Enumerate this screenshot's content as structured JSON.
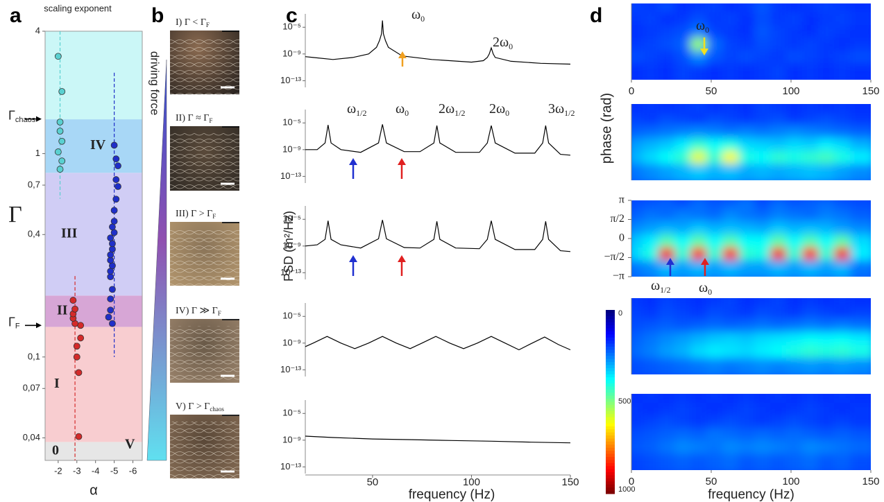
{
  "chart_data": [
    {
      "type": "scatter",
      "panel_label": "a",
      "title": "scaling exponent",
      "xlabel": "α",
      "ylabel": "Γ",
      "xlim": [
        -1.3,
        -6.5
      ],
      "xticks": [
        -2,
        -3,
        -4,
        -5,
        -6
      ],
      "ylim": [
        0.031,
        4
      ],
      "log_y": true,
      "yticks": [
        {
          "value": 0.04,
          "label": "0,04"
        },
        {
          "value": 0.07,
          "label": "0,07"
        },
        {
          "value": 0.1,
          "label": "0,1"
        },
        {
          "value": 0.4,
          "label": "0,4"
        },
        {
          "value": 0.7,
          "label": "0,7"
        },
        1,
        4
      ],
      "regions": [
        {
          "name": "0",
          "from": 0.031,
          "to": 0.0382,
          "color": "#e6e6e6"
        },
        {
          "name": "I",
          "from": 0.0382,
          "to": 0.1406,
          "color": "#f8cdd0"
        },
        {
          "name": "II",
          "from": 0.1406,
          "to": 0.2004,
          "color": "#d7a6d6"
        },
        {
          "name": "III",
          "from": 0.2004,
          "to": 0.805,
          "color": "#d0cdf5"
        },
        {
          "name": "IV",
          "from": 0.805,
          "to": 1.475,
          "color": "#a8d7f6"
        },
        {
          "name": "V",
          "from": 1.475,
          "to": 4,
          "color": "#cbf7f7"
        }
      ],
      "markers": [
        {
          "text": "Γ",
          "sub": "F",
          "value": 0.143
        },
        {
          "text": "Γ",
          "sub": "chaos",
          "value": 1.48
        }
      ],
      "series": [
        {
          "color": "#d42a2a",
          "fit": -2.9,
          "fit_range": [
            0.031,
            0.25
          ],
          "x": [
            -3.1,
            -3.1,
            -3.0,
            -3.0,
            -3.2,
            -3.2,
            -2.9,
            -2.8,
            -2.8,
            -2.9,
            -2.8
          ],
          "y": [
            0.0406,
            0.0838,
            0.1,
            0.113,
            0.124,
            0.143,
            0.146,
            0.155,
            0.163,
            0.172,
            0.19
          ]
        },
        {
          "color": "#1f2fc8",
          "fit": -5.0,
          "fit_range": [
            0.1,
            2.5
          ],
          "x": [
            -4.9,
            -4.7,
            -4.8,
            -4.8,
            -4.9,
            -4.8,
            -4.8,
            -4.9,
            -4.8,
            -4.8,
            -4.9,
            -4.9,
            -4.8,
            -5.0,
            -4.9,
            -5.0,
            -5.0,
            -5.1,
            -5.2,
            -5.1,
            -5.2,
            -5.1,
            -5.0
          ],
          "y": [
            0.146,
            0.157,
            0.17,
            0.193,
            0.215,
            0.248,
            0.264,
            0.281,
            0.299,
            0.318,
            0.339,
            0.361,
            0.385,
            0.409,
            0.436,
            0.465,
            0.526,
            0.597,
            0.689,
            0.745,
            0.871,
            0.942,
            1.1
          ]
        },
        {
          "color": "#5ad0d0",
          "fit": -2.1,
          "fit_range": [
            0.6,
            4
          ],
          "x": [
            -2.1,
            -2.2,
            -2.0,
            -2.2,
            -2.1,
            -2.1,
            -2.2,
            -2.0
          ],
          "y": [
            0.838,
            0.92,
            1.02,
            1.15,
            1.29,
            1.43,
            2.02,
            3.01
          ]
        }
      ]
    },
    {
      "type": "images",
      "panel_label": "b",
      "axis_label": "driving force",
      "images": [
        {
          "text": "I) Γ < Γ",
          "sub": "F"
        },
        {
          "text": "II) Γ ≈ Γ",
          "sub": "F"
        },
        {
          "text": "III) Γ > Γ",
          "sub": "F"
        },
        {
          "text": "IV) Γ ≫ Γ",
          "sub": "F"
        },
        {
          "text": "V) Γ > Γ",
          "sub": "chaos"
        }
      ]
    },
    {
      "type": "line",
      "panel_label": "c",
      "color": "#000000",
      "xlim": [
        16,
        150
      ],
      "ylim": [
        1e-14,
        0.001
      ],
      "log_y": true,
      "yticks": [
        {
          "value": 1e-05,
          "label": "10⁻⁵"
        },
        {
          "value": 1e-09,
          "label": "10⁻⁹"
        },
        {
          "value": 1e-13,
          "label": "10⁻¹³"
        }
      ],
      "x": [
        16,
        20,
        30,
        40,
        48,
        52,
        53.5,
        54.5,
        55,
        55.5,
        56.5,
        58,
        65,
        80,
        100,
        106,
        108,
        109,
        110,
        111,
        112,
        120,
        135,
        150
      ],
      "values": [
        4e-10,
        3e-10,
        1.5e-10,
        3e-10,
        1e-09,
        1e-08,
        1e-07,
        1e-06,
        0.0001,
        1e-06,
        1e-07,
        1e-08,
        5e-10,
        1.5e-10,
        6e-11,
        1e-10,
        3e-10,
        1e-09,
        8e-09,
        1e-09,
        3e-10,
        8e-11,
        4e-11,
        3e-11
      ],
      "annotations": [
        {
          "text": "ω",
          "sub": "0",
          "color": "#e02020"
        },
        {
          "text": "2ω",
          "sub": "0",
          "color": "#e02020"
        }
      ]
    },
    {
      "type": "line",
      "color": "#000000",
      "xlim": [
        16,
        150
      ],
      "ylim": [
        1e-14,
        0.001
      ],
      "log_y": true,
      "yticks": [
        {
          "value": 1e-05,
          "label": "10⁻⁵"
        },
        {
          "value": 1e-09,
          "label": "10⁻⁹"
        },
        {
          "value": 1e-13,
          "label": "10⁻¹³"
        }
      ],
      "x": [
        16,
        22,
        26,
        27.5,
        29,
        34,
        44,
        53,
        55,
        57,
        66,
        74,
        81,
        82.5,
        84,
        92,
        104,
        108,
        110,
        112,
        122,
        132,
        136,
        137.5,
        139,
        145,
        150
      ],
      "values": [
        1e-09,
        1e-09,
        1e-08,
        5e-06,
        1e-08,
        1e-09,
        4e-10,
        1e-08,
        6e-06,
        1e-08,
        5e-10,
        5e-10,
        1e-08,
        4e-06,
        1e-08,
        4e-10,
        4e-10,
        1e-08,
        4e-06,
        1e-08,
        3e-10,
        3e-10,
        1e-08,
        4e-06,
        1e-08,
        2e-10,
        1.5e-10
      ],
      "annotations": [
        {
          "text": "ω",
          "sub": "1/2",
          "color": "#2020c0"
        },
        {
          "text": "ω",
          "sub": "0",
          "color": "#e02020"
        },
        {
          "text": "2ω",
          "sub": "1/2",
          "color": "#2020c0"
        },
        {
          "text": "2ω",
          "sub": "0",
          "color": "#e02020"
        },
        {
          "text": "3ω",
          "sub": "1/2",
          "color": "#2020c0"
        }
      ]
    },
    {
      "type": "line",
      "color": "#000000",
      "ylabel": "PSD (m²/Hz)",
      "xlim": [
        16,
        150
      ],
      "ylim": [
        1e-14,
        0.001
      ],
      "log_y": true,
      "yticks": [
        {
          "value": 1e-05,
          "label": "10⁻⁵"
        },
        {
          "value": 1e-09,
          "label": "10⁻⁹"
        },
        {
          "value": 1e-13,
          "label": "10⁻¹³"
        }
      ],
      "x": [
        16,
        22,
        26,
        27.5,
        29,
        34,
        44,
        53,
        55,
        57,
        66,
        74,
        81,
        82.5,
        84,
        92,
        104,
        108,
        110,
        112,
        122,
        132,
        136,
        137.5,
        139,
        145,
        150
      ],
      "values": [
        1e-09,
        1.5e-09,
        1e-08,
        6e-06,
        1e-08,
        1.5e-09,
        5e-10,
        1.2e-08,
        8e-06,
        1.2e-08,
        6e-10,
        5e-10,
        1e-08,
        5e-06,
        1e-08,
        5e-10,
        4e-10,
        1e-08,
        6e-06,
        1e-08,
        3e-10,
        3e-10,
        1e-08,
        5e-06,
        1e-08,
        2e-10,
        1.5e-10
      ]
    },
    {
      "type": "line",
      "color": "#000000",
      "xlim": [
        16,
        150
      ],
      "ylim": [
        1e-14,
        0.001
      ],
      "log_y": true,
      "yticks": [
        {
          "value": 1e-05,
          "label": "10⁻⁵"
        },
        {
          "value": 1e-09,
          "label": "10⁻⁹"
        },
        {
          "value": 1e-13,
          "label": "10⁻¹³"
        }
      ],
      "x": [
        16,
        20,
        27,
        34,
        41,
        48,
        55,
        62,
        69,
        75,
        82,
        89,
        96,
        103,
        110,
        117,
        124,
        130,
        137,
        144,
        150
      ],
      "values": [
        3e-10,
        1e-09,
        1e-08,
        1e-09,
        1.5e-10,
        1e-09,
        1e-08,
        1e-09,
        1.5e-10,
        1e-09,
        1e-08,
        1e-09,
        1.5e-10,
        1e-09,
        1e-08,
        1e-09,
        1e-10,
        8e-10,
        8e-09,
        6e-10,
        1e-10
      ]
    },
    {
      "type": "line",
      "color": "#000000",
      "xlabel": "frequency (Hz)",
      "xlim": [
        16,
        150
      ],
      "xticks": [
        50,
        100,
        150
      ],
      "ylim": [
        1e-14,
        0.001
      ],
      "log_y": true,
      "yticks": [
        {
          "value": 1e-05,
          "label": "10⁻⁵"
        },
        {
          "value": 1e-09,
          "label": "10⁻⁹"
        },
        {
          "value": 1e-13,
          "label": "10⁻¹³"
        }
      ],
      "x": [
        16,
        30,
        50,
        70,
        90,
        110,
        130,
        150
      ],
      "values": [
        4e-09,
        2.5e-09,
        1.5e-09,
        1.2e-09,
        9e-10,
        7e-10,
        5e-10,
        4e-10
      ]
    },
    {
      "type": "heatmap",
      "panel_label": "d",
      "xlim": [
        0,
        150
      ],
      "xticks": [
        0,
        50,
        100,
        150
      ],
      "clim": [
        0,
        1000
      ],
      "values": [
        [
          190,
          180,
          200,
          170,
          180,
          190,
          170,
          180,
          210,
          180,
          170,
          180,
          190,
          180,
          170
        ],
        [
          180,
          190,
          170,
          180,
          200,
          180,
          190,
          170,
          200,
          180,
          190,
          170,
          180,
          190,
          180
        ],
        [
          170,
          180,
          190,
          200,
          240,
          190,
          180,
          170,
          210,
          190,
          180,
          170,
          190,
          180,
          170
        ],
        [
          180,
          190,
          200,
          220,
          520,
          230,
          190,
          180,
          200,
          190,
          180,
          190,
          180,
          170,
          180
        ],
        [
          200,
          190,
          180,
          200,
          260,
          210,
          190,
          200,
          190,
          180,
          200,
          190,
          180,
          190,
          200
        ],
        [
          170,
          180,
          170,
          190,
          180,
          170,
          180,
          170,
          180,
          190,
          170,
          180,
          170,
          180,
          170
        ]
      ],
      "annotations": [
        {
          "text": "ω",
          "sub": "0",
          "color": "#f0e020"
        }
      ]
    },
    {
      "type": "heatmap",
      "ylabel": "phase (rad)",
      "xlim": [
        0,
        150
      ],
      "clim": [
        0,
        1000
      ],
      "values": [
        [
          170,
          180,
          170,
          180,
          190,
          170,
          180,
          170,
          190,
          180,
          170,
          180,
          170,
          180,
          170
        ],
        [
          190,
          180,
          200,
          190,
          180,
          200,
          190,
          180,
          190,
          200,
          180,
          190,
          200,
          190,
          180
        ],
        [
          220,
          230,
          240,
          250,
          260,
          250,
          240,
          250,
          240,
          250,
          260,
          250,
          240,
          230,
          220
        ],
        [
          280,
          300,
          320,
          360,
          420,
          380,
          400,
          340,
          330,
          320,
          340,
          330,
          360,
          340,
          300
        ],
        [
          300,
          340,
          380,
          420,
          600,
          420,
          620,
          400,
          380,
          420,
          400,
          420,
          440,
          400,
          360
        ],
        [
          240,
          260,
          280,
          300,
          320,
          300,
          310,
          290,
          300,
          290,
          300,
          310,
          300,
          280,
          260
        ]
      ]
    },
    {
      "type": "heatmap",
      "xlim": [
        0,
        150
      ],
      "clim": [
        0,
        1000
      ],
      "ylim": [
        -3.1416,
        3.1416
      ],
      "yticks": [
        {
          "value": 3.1416,
          "label": "π"
        },
        {
          "value": 1.5708,
          "label": "π/2"
        },
        0,
        {
          "value": -1.5708,
          "label": "−π/2"
        },
        {
          "value": -3.1416,
          "label": "−π"
        }
      ],
      "values": [
        [
          200,
          210,
          220,
          200,
          230,
          210,
          220,
          240,
          200,
          230,
          210,
          220,
          230,
          210,
          200
        ],
        [
          220,
          240,
          230,
          250,
          240,
          230,
          260,
          240,
          230,
          250,
          240,
          230,
          250,
          240,
          220
        ],
        [
          260,
          280,
          300,
          290,
          320,
          300,
          310,
          300,
          290,
          320,
          300,
          310,
          300,
          280,
          260
        ],
        [
          320,
          360,
          450,
          380,
          460,
          380,
          450,
          380,
          380,
          460,
          380,
          450,
          380,
          460,
          340
        ],
        [
          340,
          400,
          880,
          420,
          860,
          420,
          860,
          420,
          400,
          880,
          420,
          860,
          420,
          880,
          360
        ],
        [
          240,
          260,
          300,
          280,
          300,
          280,
          300,
          280,
          280,
          300,
          280,
          300,
          280,
          300,
          240
        ]
      ],
      "annotations": [
        {
          "text": "ω",
          "sub": "1/2",
          "color": "#2020c0"
        },
        {
          "text": "ω",
          "sub": "0",
          "color": "#e02020"
        }
      ]
    },
    {
      "type": "heatmap",
      "xlim": [
        0,
        150
      ],
      "clim": [
        0,
        1000
      ],
      "values": [
        [
          180,
          170,
          190,
          180,
          170,
          180,
          190,
          170,
          180,
          190,
          170,
          180,
          170,
          180,
          170
        ],
        [
          190,
          180,
          200,
          190,
          180,
          200,
          190,
          180,
          200,
          190,
          180,
          200,
          190,
          180,
          190
        ],
        [
          200,
          210,
          220,
          210,
          220,
          230,
          220,
          230,
          240,
          230,
          240,
          250,
          240,
          250,
          240
        ],
        [
          220,
          240,
          260,
          280,
          300,
          320,
          330,
          320,
          340,
          350,
          360,
          380,
          370,
          380,
          360
        ],
        [
          230,
          250,
          280,
          300,
          340,
          360,
          350,
          340,
          360,
          380,
          400,
          420,
          410,
          420,
          400
        ],
        [
          200,
          210,
          220,
          230,
          240,
          250,
          240,
          250,
          260,
          250,
          260,
          270,
          260,
          270,
          260
        ]
      ]
    },
    {
      "type": "heatmap",
      "xlim": [
        0,
        150
      ],
      "xticks": [
        0,
        50,
        100,
        150
      ],
      "xlabel": "frequency (Hz)",
      "clim": [
        0,
        1000
      ],
      "values": [
        [
          170,
          180,
          170,
          180,
          170,
          180,
          170,
          180,
          170,
          180,
          170,
          180,
          170,
          180,
          170
        ],
        [
          180,
          170,
          180,
          190,
          180,
          170,
          180,
          190,
          180,
          170,
          180,
          190,
          180,
          170,
          180
        ],
        [
          180,
          190,
          200,
          190,
          180,
          190,
          200,
          190,
          180,
          190,
          200,
          190,
          180,
          190,
          180
        ],
        [
          200,
          210,
          220,
          230,
          220,
          240,
          230,
          220,
          230,
          220,
          230,
          220,
          210,
          220,
          210
        ],
        [
          210,
          220,
          240,
          260,
          250,
          240,
          260,
          250,
          260,
          250,
          240,
          260,
          250,
          240,
          230
        ],
        [
          190,
          200,
          210,
          220,
          210,
          220,
          230,
          210,
          220,
          210,
          220,
          230,
          210,
          220,
          200
        ]
      ]
    },
    {
      "type": "colorbar",
      "lim": [
        0,
        1000
      ],
      "ticks": [
        0,
        500,
        1000
      ]
    }
  ]
}
